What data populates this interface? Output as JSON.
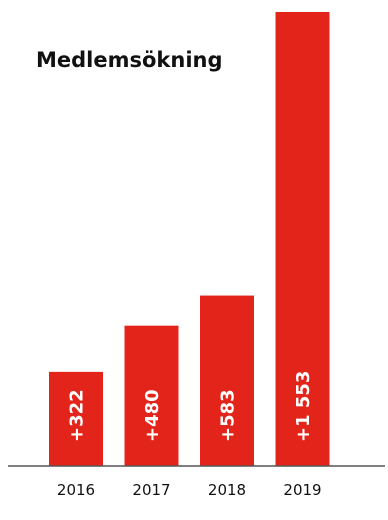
{
  "chart_data": {
    "type": "bar",
    "title": "Medlemsökning",
    "categories": [
      "2016",
      "2017",
      "2018",
      "2019"
    ],
    "values": [
      322,
      480,
      583,
      1553
    ],
    "value_labels": [
      "+322",
      "+480",
      "+583",
      "+1 553"
    ],
    "xlabel": "",
    "ylabel": "",
    "grid": false,
    "legend": "none"
  },
  "colors": {
    "bar": "#e3241b",
    "axis": "#555555",
    "text": "#111111",
    "value_label": "#ffffff"
  }
}
